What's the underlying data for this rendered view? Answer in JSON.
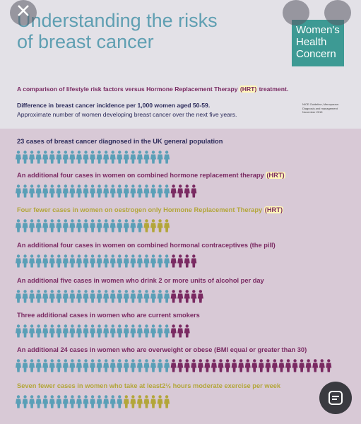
{
  "header": {
    "title_line1": "Understanding the risks",
    "title_line2": "of breast cancer",
    "logo": [
      "Women's",
      "Health",
      "Concern"
    ]
  },
  "intro": {
    "comparison": [
      "A comparison of lifestyle risk factors versus Hormone Replacement Therapy ",
      "(HRT)",
      " treatment."
    ],
    "difference": "Difference in breast cancer incidence per 1,000 women aged 50-59.",
    "approximate": "Approximate number of women developing breast cancer over the next five years.",
    "source": [
      "NICE Guideline, Menopause:",
      "Diagnosis and management",
      "November 2015"
    ]
  },
  "base_color": "#5a9fb7",
  "rows": [
    {
      "text": "23 cases of breast cancer diagnosed in the  UK general population",
      "color": "#2b2a5a",
      "base": 23
    },
    {
      "text": "An additional four cases in women on combined hormone replacement therapy ",
      "highlight": "(HRT)",
      "color": "#7a2a62",
      "base": 23,
      "extra": 4,
      "extra_color": "#7a2a62"
    },
    {
      "text": "Four fewer  cases in women on oestrogen only Hormone Replacement Therapy ",
      "highlight": "(HRT)",
      "color": "#b3a63a",
      "base": 19,
      "extra": 4,
      "extra_color": "#b3a63a"
    },
    {
      "text": "An additional four cases in women on combined hormonal contraceptives (the pill)",
      "color": "#7a2a62",
      "base": 23,
      "extra": 4,
      "extra_color": "#7a2a62"
    },
    {
      "text": "An additional five cases in women who drink 2 or more units of alcohol per day",
      "color": "#7a2a62",
      "base": 23,
      "extra": 5,
      "extra_color": "#7a2a62"
    },
    {
      "text": "Three additional cases in women who are current smokers",
      "color": "#7a2a62",
      "base": 23,
      "extra": 3,
      "extra_color": "#7a2a62"
    },
    {
      "text": "An additional 24 cases in women who are overweight or obese (BMI equal or greater than 30)",
      "color": "#7a2a62",
      "base": 23,
      "extra": 24,
      "extra_color": "#7a2a62"
    },
    {
      "text": "Seven fewer cases in women who take at least2½ hours moderate exercise per week",
      "color": "#b3a63a",
      "base": 16,
      "extra": 7,
      "extra_color": "#b3a63a"
    }
  ]
}
